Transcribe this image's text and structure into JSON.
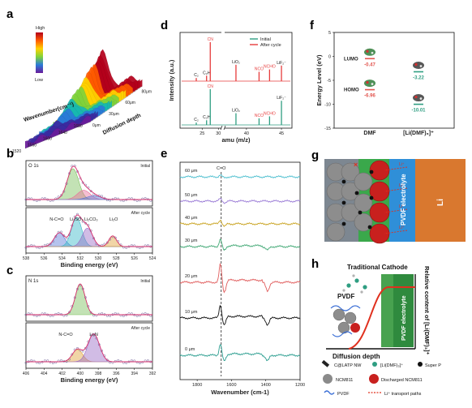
{
  "panels": {
    "a": {
      "label": "a"
    },
    "b": {
      "label": "b"
    },
    "c": {
      "label": "c"
    },
    "d": {
      "label": "d"
    },
    "e": {
      "label": "e"
    },
    "f": {
      "label": "f"
    },
    "g": {
      "label": "g"
    },
    "h": {
      "label": "h"
    }
  },
  "chart_data": [
    {
      "id": "a",
      "type": "heatmap",
      "colorbar": {
        "high": "High",
        "low": "Low"
      },
      "xlabel": "Wavenumber(cm⁻¹)",
      "ylabel": "Diffusion depth",
      "wavenumber_ticks": [
        "1520",
        "1560",
        "1600",
        "1640",
        "1680"
      ],
      "depth_ticks": [
        "0μm",
        "30μm",
        "60μm",
        "80μm"
      ],
      "colors": [
        "#b4001b",
        "#ff5a00",
        "#ffd200",
        "#7fd33b",
        "#17b9b0",
        "#2a7bd8",
        "#3b2aa0",
        "#6a1b9a"
      ]
    },
    {
      "id": "b",
      "type": "line",
      "title": "O 1s",
      "xlabel": "Binding energy (eV)",
      "xlim": [
        538,
        524
      ],
      "xticks": [
        "538",
        "536",
        "534",
        "532",
        "530",
        "528",
        "526",
        "524"
      ],
      "subplots": [
        {
          "tag": "Initial",
          "peaks": [
            {
              "center": 532.8,
              "width": 0.9,
              "height": 1.0,
              "color": "#7bbf5b"
            },
            {
              "center": 531.6,
              "width": 1.0,
              "height": 0.3,
              "color": "#e86f9b"
            },
            {
              "center": 530.5,
              "width": 1.1,
              "height": 0.12,
              "color": "#5a7bd6"
            }
          ],
          "labels": []
        },
        {
          "tag": "After cycle",
          "peaks": [
            {
              "center": 534.3,
              "width": 0.8,
              "height": 0.45,
              "color": "#5a7bd6"
            },
            {
              "center": 532.4,
              "width": 0.8,
              "height": 0.95,
              "color": "#37b7c8"
            },
            {
              "center": 531.2,
              "width": 0.8,
              "height": 0.6,
              "color": "#9a6bc6"
            },
            {
              "center": 528.4,
              "width": 0.6,
              "height": 0.35,
              "color": "#e0a23a"
            }
          ],
          "labels": [
            {
              "text": "N-C=O",
              "x": 534.6
            },
            {
              "text": "Li₂SO₃",
              "x": 532.4
            },
            {
              "text": "Li₂CO₃",
              "x": 530.8
            },
            {
              "text": "Li₂O",
              "x": 528.3
            }
          ]
        }
      ]
    },
    {
      "id": "c",
      "type": "line",
      "title": "N 1s",
      "xlabel": "Binding energy (eV)",
      "xlim": [
        406,
        392
      ],
      "xticks": [
        "406",
        "404",
        "402",
        "400",
        "398",
        "396",
        "394",
        "392"
      ],
      "subplots": [
        {
          "tag": "Initial",
          "peaks": [
            {
              "center": 400.0,
              "width": 0.75,
              "height": 1.0,
              "color": "#7bbf5b"
            }
          ],
          "labels": []
        },
        {
          "tag": "After cycle",
          "peaks": [
            {
              "center": 400.3,
              "width": 0.8,
              "height": 0.4,
              "color": "#e0a23a"
            },
            {
              "center": 398.5,
              "width": 0.9,
              "height": 0.9,
              "color": "#9a6bc6"
            }
          ],
          "labels": [
            {
              "text": "N-C=O",
              "x": 401.6
            },
            {
              "text": "Li₃N",
              "x": 398.5
            }
          ]
        }
      ]
    },
    {
      "id": "d",
      "type": "bar",
      "ylabel": "Intensity (a.u.)",
      "xlabel": "amu (m/z)",
      "xticks": [
        "25",
        "30",
        "40",
        "45"
      ],
      "series": [
        {
          "name": "Initial",
          "color": "#2f9e82",
          "peaks": [
            [
              24.2,
              0.06
            ],
            [
              25.6,
              0.12
            ],
            [
              26.1,
              0.92
            ],
            [
              38.5,
              0.3
            ],
            [
              41.8,
              0.17
            ],
            [
              43.3,
              0.22
            ],
            [
              45.0,
              0.62
            ]
          ],
          "labels": [
            "C₂",
            "C₂H",
            "CN",
            "LiO₂",
            "NCO",
            "NCHO",
            "LiF₂⁻"
          ]
        },
        {
          "name": "After cycle",
          "color": "#e63c3c",
          "peaks": [
            [
              24.2,
              0.08
            ],
            [
              25.6,
              0.14
            ],
            [
              26.1,
              1.0
            ],
            [
              38.5,
              0.42
            ],
            [
              41.8,
              0.24
            ],
            [
              43.3,
              0.3
            ],
            [
              45.0,
              0.4
            ]
          ],
          "labels": [
            "C₂",
            "C₂H",
            "CN",
            "LiO₂",
            "NCO",
            "NCHO",
            "LiF₂⁻"
          ]
        }
      ]
    },
    {
      "id": "e",
      "type": "line",
      "xlabel": "Wavenumber (cm-1)",
      "xlim": [
        1900,
        1200
      ],
      "xticks": [
        "1800",
        "1600",
        "1400",
        "1200"
      ],
      "annotation": "C=O",
      "series": [
        {
          "name": "60 μm",
          "color": "#4dbfcf"
        },
        {
          "name": "50 μm",
          "color": "#9a7bd6"
        },
        {
          "name": "40 μm",
          "color": "#c9a320"
        },
        {
          "name": "30 μm",
          "color": "#3fa773"
        },
        {
          "name": "20 μm",
          "color": "#e05b5b"
        },
        {
          "name": "10 μm",
          "color": "#111111"
        },
        {
          "name": "0 μm",
          "color": "#2a9d8f"
        }
      ]
    },
    {
      "id": "f",
      "type": "scatter",
      "ylabel": "Energy Level (eV)",
      "ylim": [
        -15,
        5
      ],
      "yticks": [
        "5",
        "0",
        "-5",
        "-10",
        "-15"
      ],
      "categories": [
        "DMF",
        "[Li(DMF)₃]⁺"
      ],
      "lumo_label": "LUMO",
      "homo_label": "HOMO",
      "levels": [
        {
          "category": "DMF",
          "lumo": -0.47,
          "homo": -6.96,
          "lumo_text": "-0.47",
          "homo_text": "-6.96",
          "color": "#e2554f"
        },
        {
          "category": "[Li(DMF)₃]⁺",
          "lumo": -3.22,
          "homo": -10.01,
          "lumo_text": "-3.22",
          "homo_text": "-10.01",
          "color": "#2f9e82"
        }
      ]
    }
  ],
  "g": {
    "electrolyte": "PVDF electrolyte",
    "li": "Li",
    "ion": "Li⁺"
  },
  "h": {
    "cathode": "Traditional Cathode",
    "pvdf": "PVDF",
    "electrolyte": "PVDF electrolyte",
    "depth": "Diffusion depth",
    "ylabel": "Relative content of [Li(DMF)₃]⁺",
    "legend": [
      "C@LATP NW",
      "[Li(DMF)₃]⁺",
      "Super P",
      "NCM811",
      "Discharged NCM811",
      "PVDF",
      "Li⁺ transport paths"
    ]
  }
}
